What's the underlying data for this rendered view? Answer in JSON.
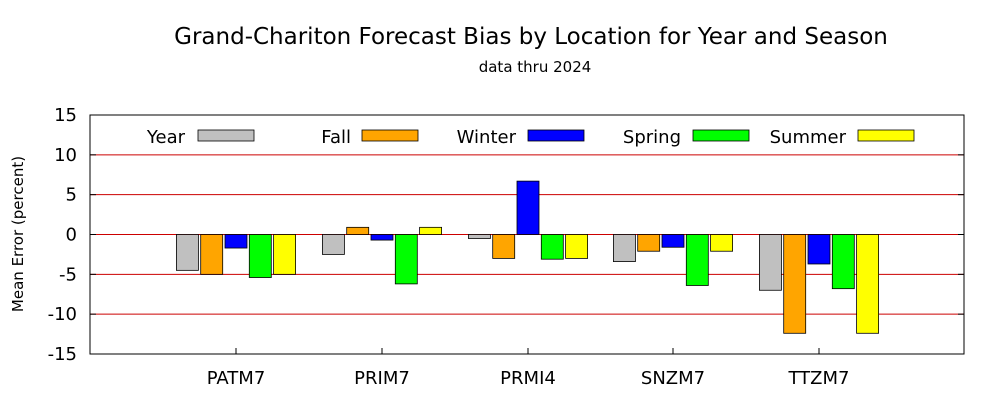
{
  "chart_data": {
    "type": "bar",
    "title": "Grand-Chariton Forecast Bias by Location for Year and Season",
    "subtitle": "data thru 2024",
    "ylabel": "Mean Error (percent)",
    "xlabel": "",
    "ylim": [
      -15,
      15
    ],
    "yticks": [
      15,
      10,
      5,
      0,
      -5,
      -10,
      -15
    ],
    "grid": "horizontal",
    "grid_color": "#cc0000",
    "legend_position": "top",
    "categories": [
      "PATM7",
      "PRIM7",
      "PRMI4",
      "SNZM7",
      "TTZM7"
    ],
    "series": [
      {
        "name": "Year",
        "color": "#c0c0c0",
        "values": [
          -4.5,
          -2.5,
          -0.5,
          -3.4,
          -7.0
        ]
      },
      {
        "name": "Fall",
        "color": "#ffa500",
        "values": [
          -5.0,
          0.9,
          -3.0,
          -2.1,
          -12.4
        ]
      },
      {
        "name": "Winter",
        "color": "#0000ff",
        "values": [
          -1.7,
          -0.7,
          6.7,
          -1.6,
          -3.7
        ]
      },
      {
        "name": "Spring",
        "color": "#00ff00",
        "values": [
          -5.4,
          -6.2,
          -3.1,
          -6.4,
          -6.8
        ]
      },
      {
        "name": "Summer",
        "color": "#ffff00",
        "values": [
          -5.0,
          0.9,
          -3.0,
          -2.1,
          -12.4
        ]
      }
    ]
  }
}
